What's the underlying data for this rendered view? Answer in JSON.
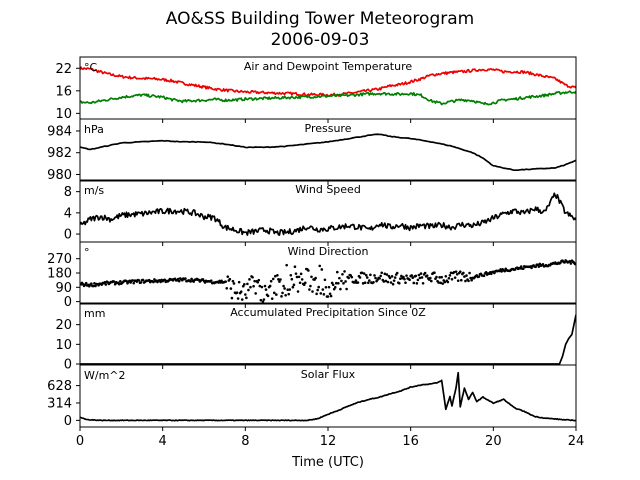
{
  "title": "AO&SS Building Tower Meteorogram",
  "subtitle": "2006-09-03",
  "xlabel": "Time (UTC)",
  "colors": {
    "temperature": "#ee0000",
    "dewpoint": "#007f00",
    "line": "#000000"
  },
  "chart_data": [
    {
      "type": "line",
      "title": "Air and Dewpoint Temperature",
      "unit": "°C",
      "ylim": [
        8.5,
        25
      ],
      "yticks": [
        10,
        16,
        22
      ],
      "series": [
        {
          "color": "#ee0000",
          "x": [
            0,
            0.5,
            1,
            1.5,
            2,
            2.5,
            3,
            3.5,
            4,
            4.5,
            5,
            5.5,
            6,
            6.5,
            7,
            7.5,
            8,
            8.5,
            9,
            9.5,
            10,
            10.5,
            11,
            11.5,
            12,
            12.5,
            13,
            13.5,
            14,
            14.5,
            15,
            15.5,
            16,
            16.5,
            17,
            17.5,
            18,
            18.5,
            19,
            19.5,
            20,
            20.5,
            21,
            21.5,
            22,
            22.5,
            23,
            23.5,
            24
          ],
          "y": [
            22,
            21.8,
            21,
            20.3,
            19.8,
            19.5,
            19.3,
            19.2,
            19,
            18.6,
            18,
            17.5,
            17,
            16.5,
            16.2,
            15.9,
            15.7,
            15.6,
            15.5,
            15.4,
            15.3,
            15.2,
            15,
            15,
            14.9,
            15,
            15.3,
            15.7,
            16.1,
            16.5,
            17.3,
            17.7,
            18.4,
            19.2,
            20.2,
            20.6,
            20.9,
            21.1,
            21.4,
            21.7,
            21.6,
            21.1,
            21.1,
            21,
            20.4,
            19.8,
            19.2,
            17.5,
            16.8
          ]
        },
        {
          "color": "#007f00",
          "x": [
            0,
            0.5,
            1,
            1.5,
            2,
            2.5,
            3,
            3.5,
            4,
            4.5,
            5,
            5.5,
            6,
            6.5,
            7,
            7.5,
            8,
            8.5,
            9,
            9.5,
            10,
            10.5,
            11,
            11.5,
            12,
            12.5,
            13,
            13.5,
            14,
            14.5,
            15,
            15.5,
            16,
            16.5,
            17,
            17.5,
            18,
            18.5,
            19,
            19.5,
            20,
            20.5,
            21,
            21.5,
            22,
            22.5,
            23,
            23.5,
            24
          ],
          "y": [
            13,
            12.8,
            13.3,
            13.8,
            14.3,
            14.6,
            14.9,
            14.6,
            14.3,
            13.6,
            13.2,
            13.4,
            13.5,
            13.7,
            13.5,
            13.6,
            13.8,
            13.9,
            14,
            14.1,
            14.2,
            14.3,
            14.4,
            14.5,
            14.6,
            14.7,
            14.8,
            15,
            15.2,
            15.3,
            15.2,
            15.1,
            15.3,
            14.8,
            13.3,
            12.6,
            13.2,
            13.6,
            13.4,
            12.5,
            12.8,
            13.6,
            13.8,
            14.2,
            14.5,
            14.8,
            15.3,
            15.6,
            15.8
          ]
        }
      ]
    },
    {
      "type": "line",
      "title": "Pressure",
      "unit": "hPa",
      "ylim": [
        979.4,
        985.1
      ],
      "yticks": [
        980,
        982,
        984
      ],
      "series": [
        {
          "color": "#000000",
          "x": [
            0,
            0.5,
            1,
            1.5,
            2,
            3,
            4,
            5,
            6,
            7,
            8,
            9,
            10,
            11,
            12,
            13,
            14,
            14.5,
            15,
            16,
            17,
            18,
            19,
            19.5,
            20,
            21,
            22,
            23,
            23.5,
            24
          ],
          "y": [
            982.5,
            982.3,
            982.5,
            982.7,
            982.9,
            983,
            983.1,
            983,
            983,
            982.8,
            982.5,
            982.5,
            982.6,
            982.8,
            983,
            983.3,
            983.6,
            983.7,
            983.5,
            983.3,
            983,
            982.6,
            982,
            981.5,
            980.8,
            980.4,
            980.5,
            980.6,
            980.9,
            981.3
          ]
        }
      ]
    },
    {
      "type": "line",
      "title": "Wind Speed",
      "unit": "m/s",
      "ylim": [
        -1.5,
        10.2
      ],
      "yticks": [
        0,
        4,
        8
      ],
      "series": [
        {
          "color": "#000000",
          "x": [
            0,
            0.5,
            1,
            1.5,
            2,
            2.5,
            3,
            3.5,
            4,
            4.5,
            5,
            5.5,
            6,
            6.5,
            7,
            7.5,
            8,
            8.5,
            9,
            9.5,
            10,
            10.5,
            11,
            11.5,
            12,
            12.5,
            13,
            13.5,
            14,
            14.5,
            15,
            15.5,
            16,
            16.5,
            17,
            17.5,
            18,
            18.5,
            19,
            19.5,
            20,
            20.5,
            21,
            21.5,
            22,
            22.5,
            23,
            23.5,
            24
          ],
          "y": [
            1.5,
            2.8,
            3.3,
            2.8,
            3.5,
            3.7,
            3.8,
            4.1,
            4.3,
            4.4,
            4.3,
            4,
            3.3,
            3.1,
            1.3,
            0.8,
            0.2,
            0.5,
            0.8,
            0.2,
            0.3,
            0.7,
            1.4,
            0.9,
            1,
            1.3,
            1.6,
            1.3,
            0.8,
            2,
            1.3,
            1.7,
            1.2,
            1.6,
            1.4,
            1.7,
            1.3,
            1.8,
            1.6,
            2.1,
            3,
            3.8,
            4.4,
            3.9,
            4.8,
            4.1,
            7.6,
            4,
            2.7
          ]
        }
      ]
    },
    {
      "type": "scatter",
      "title": "Wind Direction",
      "unit": "°",
      "ylim": [
        -15,
        375
      ],
      "yticks": [
        0,
        90,
        180,
        270
      ],
      "series": [
        {
          "color": "#000000",
          "x": [
            0,
            0.5,
            1,
            1.5,
            2,
            2.5,
            3,
            3.5,
            4,
            4.5,
            5,
            5.5,
            6,
            6.5,
            7,
            7.5,
            8,
            8.5,
            9,
            9.5,
            10,
            10.5,
            11,
            11.5,
            12,
            12.5,
            13,
            13.5,
            14,
            14.5,
            15,
            15.5,
            16,
            16.5,
            17,
            17.5,
            18,
            18.5,
            19,
            19.5,
            20,
            20.5,
            21,
            21.5,
            22,
            22.5,
            23,
            23.5,
            24
          ],
          "y": [
            110,
            105,
            112,
            118,
            120,
            125,
            128,
            130,
            132,
            135,
            138,
            136,
            130,
            125,
            125,
            70,
            50,
            120,
            30,
            110,
            90,
            125,
            140,
            105,
            90,
            130,
            140,
            150,
            145,
            160,
            140,
            150,
            135,
            145,
            155,
            140,
            150,
            160,
            155,
            170,
            185,
            200,
            205,
            215,
            225,
            230,
            240,
            252,
            245
          ]
        }
      ]
    },
    {
      "type": "line",
      "title": "Accumulated Precipitation Since 0Z",
      "unit": "mm",
      "ylim": [
        -0.5,
        31
      ],
      "yticks": [
        0,
        10,
        20
      ],
      "series": [
        {
          "color": "#000000",
          "x": [
            0,
            2,
            4,
            6,
            8,
            10,
            12,
            14,
            16,
            18,
            20,
            22,
            23.2,
            23.35,
            23.5,
            23.65,
            23.8,
            23.9,
            24
          ],
          "y": [
            0,
            0,
            0,
            0,
            0,
            0,
            0,
            0,
            0,
            0,
            0,
            0,
            0,
            4,
            10,
            13,
            15,
            20,
            25
          ]
        }
      ]
    },
    {
      "type": "line",
      "title": "Solar Flux",
      "unit": "W/m^2",
      "ylim": [
        -120,
        1000
      ],
      "yticks": [
        0,
        314,
        628
      ],
      "series": [
        {
          "color": "#000000",
          "x": [
            0,
            0.3,
            1,
            2,
            4,
            6,
            8,
            10,
            11,
            11.5,
            12,
            12.5,
            13,
            13.5,
            14,
            14.5,
            15,
            15.5,
            16,
            16.5,
            17,
            17.3,
            17.5,
            17.7,
            17.9,
            18,
            18.2,
            18.3,
            18.4,
            18.6,
            18.8,
            19,
            19.2,
            19.5,
            20,
            20.5,
            21,
            21.5,
            22,
            22.5,
            23,
            23.5,
            24
          ],
          "y": [
            60,
            15,
            0,
            0,
            0,
            0,
            0,
            0,
            0,
            30,
            110,
            180,
            260,
            330,
            380,
            420,
            480,
            530,
            600,
            640,
            660,
            680,
            720,
            200,
            430,
            260,
            600,
            860,
            250,
            580,
            380,
            500,
            340,
            420,
            310,
            380,
            230,
            160,
            70,
            40,
            25,
            8,
            0
          ]
        }
      ]
    }
  ],
  "xaxis": {
    "xlim": [
      0,
      24
    ],
    "ticks": [
      0,
      4,
      8,
      12,
      16,
      20,
      24
    ]
  }
}
